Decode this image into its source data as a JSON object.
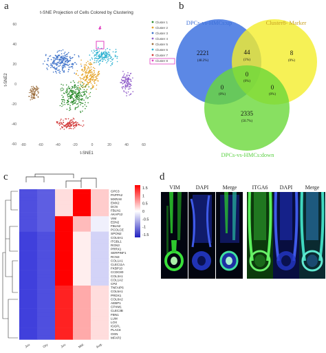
{
  "panel_a": {
    "letter": "a",
    "title": "t-SNE Projection of Cells Colored by Clustering",
    "xlabel": "t-SNE1",
    "ylabel": "t-SNE2",
    "xticks": [
      "-80",
      "-60",
      "-40",
      "-20",
      "0",
      "20",
      "40",
      "60"
    ],
    "yticks": [
      "60",
      "40",
      "20",
      "0",
      "-20",
      "-40",
      "-60"
    ],
    "legend": [
      {
        "name": "Cluster 1",
        "color": "#2a8a2a"
      },
      {
        "name": "Cluster 2",
        "color": "#e4a020"
      },
      {
        "name": "Cluster 3",
        "color": "#3a6fc8"
      },
      {
        "name": "Cluster 4",
        "color": "#8e5ac8"
      },
      {
        "name": "Cluster 5",
        "color": "#9a6b3a"
      },
      {
        "name": "Cluster 6",
        "color": "#2ab0d0"
      },
      {
        "name": "Cluster 7",
        "color": "#d23a3a"
      },
      {
        "name": "Cluster 8",
        "color": "#e040c0"
      }
    ]
  },
  "panel_b": {
    "letter": "b",
    "sets": [
      {
        "label": "DPCs-vs-HMCs:up",
        "color": "#3b6fd8",
        "fill": "#3f73e0"
      },
      {
        "label": "Cluster8- Marker",
        "color": "#c8a020",
        "fill": "#f4ee2c"
      },
      {
        "label": "DPCs-vs-HMCs:down",
        "color": "#58d040",
        "fill": "#6ad83a"
      }
    ],
    "regions": [
      {
        "count": "2221",
        "pct": "(48.2%)"
      },
      {
        "count": "44",
        "pct": "(1%)"
      },
      {
        "count": "8",
        "pct": "(0%)"
      },
      {
        "count": "0",
        "pct": "(0%)"
      },
      {
        "count": "0",
        "pct": "(0%)"
      },
      {
        "count": "0",
        "pct": "(0%)"
      },
      {
        "count": "2335",
        "pct": "(50.7%)"
      }
    ]
  },
  "panel_c": {
    "letter": "c",
    "columns": [
      "Juv.",
      "Ory.",
      "Juv.",
      "Mat.",
      "Aug."
    ],
    "genes": [
      "GPC3",
      "PAPPA2",
      "MXRA8",
      "EMX2",
      "DCN",
      "FBLN1",
      "AKAP12",
      "VIM",
      "EDN2",
      "FBLN2",
      "PCOLCE",
      "SPON2",
      "COL6A1",
      "ITGBL1",
      "RGN3",
      "PRRX1",
      "SERPINF1",
      "RCN3",
      "COL1A1",
      "CLEC11A",
      "FKBP10",
      "CCDC80",
      "COL3A1",
      "COL1A2",
      "CPZ",
      "TNFAIP6",
      "COL5A1",
      "PRDX1",
      "COL8A2",
      "AEBP1",
      "CPXM1",
      "CLEC3B",
      "FBN1",
      "LUM",
      "LOX",
      "IGGFL",
      "PLAC8",
      "OGN",
      "MFAP2"
    ],
    "scale_ticks": [
      "1.5",
      "1",
      "0.5",
      "0",
      "-0.5",
      "-1",
      "-1.5"
    ]
  },
  "panel_d": {
    "letter": "d",
    "labels_left": [
      "VIM",
      "DAPI",
      "Merge"
    ],
    "labels_right": [
      "ITGA6",
      "DAPI",
      "Merge"
    ]
  }
}
